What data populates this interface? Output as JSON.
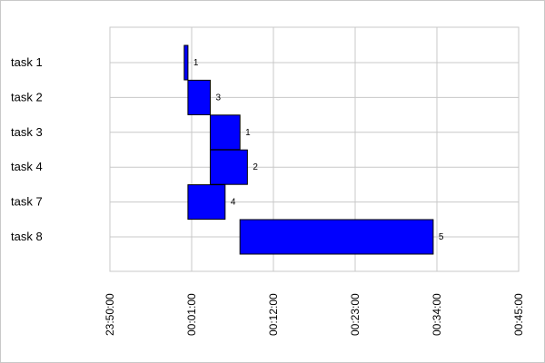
{
  "chart_data": {
    "type": "bar",
    "orientation": "horizontal",
    "chart_kind": "gantt",
    "title": "",
    "xlabel": "",
    "ylabel": "",
    "categories": [
      "task 1",
      "task 2",
      "task 3",
      "task 4",
      "task 7",
      "task 8"
    ],
    "tasks": [
      {
        "name": "task 1",
        "start": "00:00:00",
        "end": "00:00:30",
        "value_label": "1"
      },
      {
        "name": "task 2",
        "start": "00:00:30",
        "end": "00:03:30",
        "value_label": "3"
      },
      {
        "name": "task 3",
        "start": "00:03:30",
        "end": "00:07:30",
        "value_label": "1"
      },
      {
        "name": "task 4",
        "start": "00:03:30",
        "end": "00:08:30",
        "value_label": "2"
      },
      {
        "name": "task 7",
        "start": "00:00:30",
        "end": "00:05:30",
        "value_label": "4"
      },
      {
        "name": "task 8",
        "start": "00:07:30",
        "end": "00:33:30",
        "value_label": "5"
      }
    ],
    "xlim": [
      "23:50:00",
      "00:45:00"
    ],
    "x_ticks": [
      "23:50:00",
      "00:01:00",
      "00:12:00",
      "00:23:00",
      "00:34:00",
      "00:45:00"
    ],
    "grid": true,
    "legend": "none",
    "colors": {
      "bar_fill": "#0000ff",
      "bar_stroke": "#000000",
      "grid": "#c8c8c8",
      "frame": "#c8c8c8"
    }
  }
}
